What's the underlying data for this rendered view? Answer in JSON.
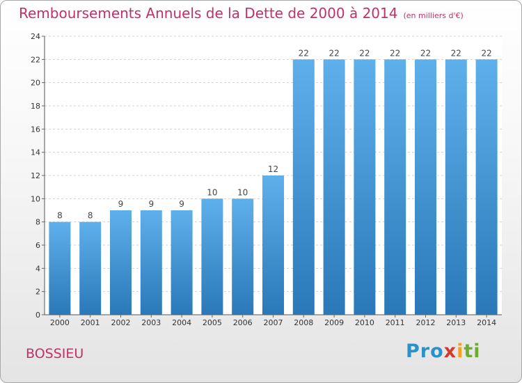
{
  "chart_data": {
    "type": "bar",
    "title": "Remboursements Annuels de la Dette de 2000 à 2014",
    "unit_note": "(en milliers d'€)",
    "categories": [
      "2000",
      "2001",
      "2002",
      "2003",
      "2004",
      "2005",
      "2006",
      "2007",
      "2008",
      "2009",
      "2010",
      "2011",
      "2012",
      "2013",
      "2014"
    ],
    "values": [
      8,
      8,
      9,
      9,
      9,
      10,
      10,
      12,
      22,
      22,
      22,
      22,
      22,
      22,
      22
    ],
    "ylim": [
      0,
      24
    ],
    "yticks": [
      0,
      2,
      4,
      6,
      8,
      10,
      12,
      14,
      16,
      18,
      20,
      22,
      24
    ],
    "xlabel": "",
    "ylabel": "",
    "bar_color": "#3d8fcf",
    "title_color": "#c0306a"
  },
  "location": "BOSSIEU",
  "brand": {
    "parts": [
      "Pro",
      "x",
      "i",
      "ti"
    ]
  }
}
